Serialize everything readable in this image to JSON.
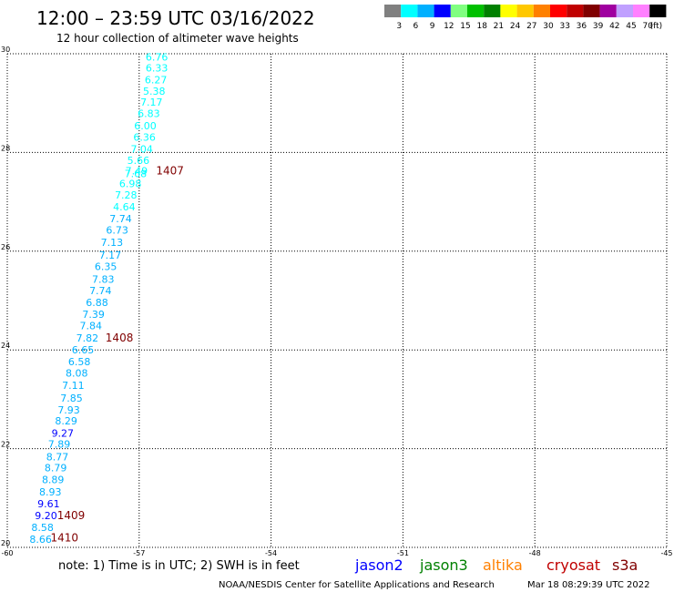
{
  "header": {
    "title": "12:00 – 23:59 UTC 03/16/2022",
    "subtitle": "12 hour collection of altimeter wave heights"
  },
  "color_scale": {
    "colors": [
      "#808080",
      "#00ffff",
      "#00b0ff",
      "#0000ff",
      "#80ff80",
      "#00c000",
      "#008000",
      "#ffff00",
      "#ffc800",
      "#ff8000",
      "#ff0000",
      "#c00000",
      "#800000",
      "#a000a0",
      "#c0a0ff",
      "#ff80ff",
      "#000000"
    ],
    "labels": [
      "3",
      "6",
      "9",
      "12",
      "15",
      "18",
      "21",
      "24",
      "27",
      "30",
      "33",
      "36",
      "39",
      "42",
      "45",
      "70",
      "(ft)"
    ]
  },
  "chart_data": {
    "type": "scatter",
    "title": "12:00 – 23:59 UTC 03/16/2022",
    "subtitle": "12 hour collection of altimeter wave heights",
    "xlim": [
      -60,
      -45
    ],
    "ylim": [
      20,
      30
    ],
    "x_ticks": [
      "-60",
      "-57",
      "-54",
      "-51",
      "-48",
      "-45"
    ],
    "y_ticks": [
      "20",
      "22",
      "24",
      "26",
      "28",
      "30"
    ],
    "grid": true,
    "points": [
      {
        "x": -56.6,
        "y": 29.94,
        "label": "6.76",
        "color": "#00ffff"
      },
      {
        "x": -56.6,
        "y": 29.71,
        "label": "6.33",
        "color": "#00ffff"
      },
      {
        "x": -56.62,
        "y": 29.47,
        "label": "6.27",
        "color": "#00ffff"
      },
      {
        "x": -56.66,
        "y": 29.24,
        "label": "5.38",
        "color": "#00ffff"
      },
      {
        "x": -56.72,
        "y": 29.02,
        "label": "7.17",
        "color": "#00ffff"
      },
      {
        "x": -56.78,
        "y": 28.79,
        "label": "6.83",
        "color": "#00ffff"
      },
      {
        "x": -56.86,
        "y": 28.54,
        "label": "6.00",
        "color": "#00ffff"
      },
      {
        "x": -56.88,
        "y": 28.31,
        "label": "6.36",
        "color": "#00ffff"
      },
      {
        "x": -56.94,
        "y": 28.07,
        "label": "7.04",
        "color": "#00ffff"
      },
      {
        "x": -57.02,
        "y": 27.84,
        "label": "5.66",
        "color": "#00ffff"
      },
      {
        "x": -57.06,
        "y": 27.63,
        "label": "7.49",
        "color": "#00ffff"
      },
      {
        "x": -57.08,
        "y": 27.57,
        "label": "7.68",
        "color": "#00ffff"
      },
      {
        "x": -57.2,
        "y": 27.37,
        "label": "6.98",
        "color": "#00ffff"
      },
      {
        "x": -57.3,
        "y": 27.14,
        "label": "7.28",
        "color": "#00ffff"
      },
      {
        "x": -57.34,
        "y": 26.9,
        "label": "4.64",
        "color": "#00ffff"
      },
      {
        "x": -57.42,
        "y": 26.66,
        "label": "7.74",
        "color": "#00b0ff"
      },
      {
        "x": -57.5,
        "y": 26.43,
        "label": "6.73",
        "color": "#00b0ff"
      },
      {
        "x": -57.62,
        "y": 26.18,
        "label": "7.13",
        "color": "#00b0ff"
      },
      {
        "x": -57.66,
        "y": 25.92,
        "label": "7.17",
        "color": "#00b0ff"
      },
      {
        "x": -57.76,
        "y": 25.69,
        "label": "6.35",
        "color": "#00b0ff"
      },
      {
        "x": -57.82,
        "y": 25.43,
        "label": "7.83",
        "color": "#00b0ff"
      },
      {
        "x": -57.88,
        "y": 25.2,
        "label": "7.74",
        "color": "#00b0ff"
      },
      {
        "x": -57.96,
        "y": 24.96,
        "label": "6.88",
        "color": "#00b0ff"
      },
      {
        "x": -58.04,
        "y": 24.72,
        "label": "7.39",
        "color": "#00b0ff"
      },
      {
        "x": -58.1,
        "y": 24.49,
        "label": "7.84",
        "color": "#00b0ff"
      },
      {
        "x": -58.18,
        "y": 24.24,
        "label": "7.82",
        "color": "#00b0ff"
      },
      {
        "x": -58.28,
        "y": 24.0,
        "label": "6.65",
        "color": "#00b0ff"
      },
      {
        "x": -58.36,
        "y": 23.76,
        "label": "6.58",
        "color": "#00b0ff"
      },
      {
        "x": -58.42,
        "y": 23.53,
        "label": "8.08",
        "color": "#00b0ff"
      },
      {
        "x": -58.5,
        "y": 23.28,
        "label": "7.11",
        "color": "#00b0ff"
      },
      {
        "x": -58.54,
        "y": 23.03,
        "label": "7.85",
        "color": "#00b0ff"
      },
      {
        "x": -58.6,
        "y": 22.79,
        "label": "7.93",
        "color": "#00b0ff"
      },
      {
        "x": -58.66,
        "y": 22.56,
        "label": "8.29",
        "color": "#00b0ff"
      },
      {
        "x": -58.74,
        "y": 22.32,
        "label": "9.27",
        "color": "#0000ff"
      },
      {
        "x": -58.82,
        "y": 22.09,
        "label": "7.89",
        "color": "#00b0ff"
      },
      {
        "x": -58.86,
        "y": 21.84,
        "label": "8.77",
        "color": "#00b0ff"
      },
      {
        "x": -58.9,
        "y": 21.61,
        "label": "8.79",
        "color": "#00b0ff"
      },
      {
        "x": -58.96,
        "y": 21.37,
        "label": "8.89",
        "color": "#00b0ff"
      },
      {
        "x": -59.02,
        "y": 21.13,
        "label": "8.93",
        "color": "#00b0ff"
      },
      {
        "x": -59.06,
        "y": 20.89,
        "label": "9.61",
        "color": "#0000ff"
      },
      {
        "x": -59.12,
        "y": 20.65,
        "label": "9.20",
        "color": "#0000ff"
      },
      {
        "x": -59.2,
        "y": 20.41,
        "label": "8.58",
        "color": "#00b0ff"
      },
      {
        "x": -59.24,
        "y": 20.17,
        "label": "8.66",
        "color": "#00b0ff"
      }
    ],
    "time_labels": [
      {
        "x": -56.3,
        "y": 27.63,
        "label": "1407"
      },
      {
        "x": -57.45,
        "y": 24.24,
        "label": "1408"
      },
      {
        "x": -58.55,
        "y": 20.65,
        "label": "1409"
      },
      {
        "x": -58.7,
        "y": 20.19,
        "label": "1410"
      }
    ]
  },
  "footer": {
    "note": "note: 1) Time is in UTC; 2) SWH is in feet",
    "satellites": [
      {
        "name": "jason2",
        "color": "#0000ff"
      },
      {
        "name": "jason3",
        "color": "#008000"
      },
      {
        "name": "altika",
        "color": "#ff8000"
      },
      {
        "name": "cryosat",
        "color": "#c00000"
      },
      {
        "name": "s3a",
        "color": "#800000"
      }
    ],
    "credit": "NOAA/NESDIS Center for Satellite Applications and Research",
    "timestamp": "Mar 18 08:29:39 UTC 2022"
  }
}
